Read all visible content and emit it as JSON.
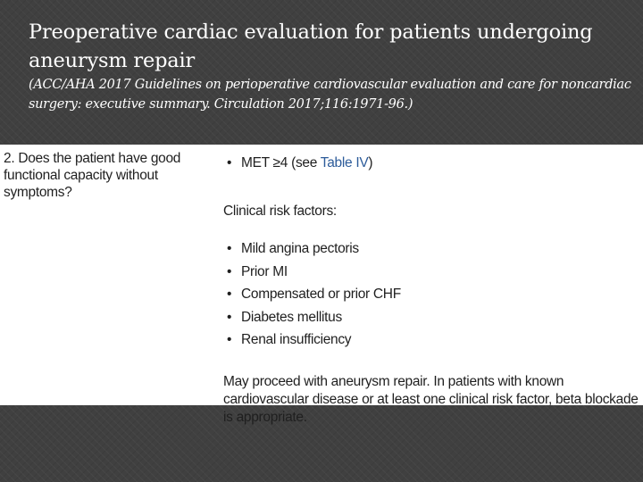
{
  "title": "Preoperative cardiac evaluation for patients undergoing aneurysm repair",
  "subtitle": "(ACC/AHA 2017 Guidelines on perioperative cardiovascular evaluation and care for noncardiac surgery: executive summary. Circulation 2017;116:1971-96.)",
  "question": "2. Does the patient have good functional capacity without symptoms?",
  "met": {
    "bullet": "•",
    "label": "MET ≥4 (see ",
    "link": "Table IV",
    "close": ")"
  },
  "clinical_risk_heading": "Clinical risk factors:",
  "risk_factors": [
    "Mild angina pectoris",
    "Prior MI",
    "Compensated or prior CHF",
    "Diabetes mellitus",
    "Renal insufficiency"
  ],
  "conclusion": "May proceed with aneurysm repair. In patients with known cardiovascular disease or at least one clinical risk factor, beta blockade is appropriate.",
  "colors": {
    "background": "#404040",
    "panel": "#ffffff",
    "link": "#2d5c9a"
  }
}
